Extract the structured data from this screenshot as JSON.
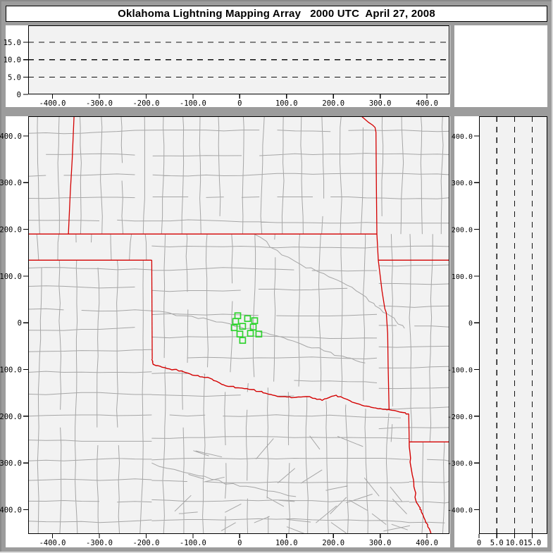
{
  "window": {
    "title": "Oklahoma Lightning Mapping Array   2000 UTC  April 27, 2008"
  },
  "colors": {
    "chrome_gray": "#9c9c9c",
    "panel_white": "#ffffff",
    "plot_bg": "#f2f2f2",
    "axis_black": "#000000",
    "county_gray": "#a6a6a6",
    "state_border_red": "#d40000",
    "station_green": "#2fd32f"
  },
  "panels": {
    "top": {
      "description": "altitude (km) vs east-west distance (km)",
      "alt_range_km": [
        0,
        19.9
      ],
      "dashed_altitudes_km": [
        5,
        10,
        15
      ],
      "y_ticks": [
        {
          "v": 15,
          "label": "15.0"
        },
        {
          "v": 10,
          "label": "10.0"
        },
        {
          "v": 5,
          "label": "5.0"
        },
        {
          "v": 0,
          "label": "0"
        }
      ]
    },
    "map": {
      "description": "plan view, distances in km from network center",
      "x_range_km": [
        -452,
        448
      ],
      "y_range_km": [
        -452,
        442
      ],
      "x_ticks": [
        {
          "v": -400,
          "label": "-400.0"
        },
        {
          "v": -300,
          "label": "-300.0"
        },
        {
          "v": -200,
          "label": "-200.0"
        },
        {
          "v": -100,
          "label": "-100.0"
        },
        {
          "v": 0,
          "label": "0"
        },
        {
          "v": 100,
          "label": "100.0"
        },
        {
          "v": 200,
          "label": "200.0"
        },
        {
          "v": 300,
          "label": "300.0"
        },
        {
          "v": 400,
          "label": "400.0"
        }
      ],
      "y_ticks": [
        {
          "v": 400,
          "label": "400.0"
        },
        {
          "v": 300,
          "label": "300.0"
        },
        {
          "v": 200,
          "label": "200.0"
        },
        {
          "v": 100,
          "label": "100.0"
        },
        {
          "v": 0,
          "label": "0"
        },
        {
          "v": -100,
          "label": "-100.0"
        },
        {
          "v": -200,
          "label": "-200.0"
        },
        {
          "v": -300,
          "label": "-300.0"
        },
        {
          "v": -400,
          "label": "-400.0"
        }
      ]
    },
    "right": {
      "description": "north-south distance (km) vs altitude (km)",
      "alt_range_km": [
        0,
        19.2
      ],
      "dashed_altitudes_km": [
        5,
        10,
        15
      ],
      "x_ticks": [
        {
          "v": 0,
          "label": "0"
        },
        {
          "v": 5,
          "label": "5.0"
        },
        {
          "v": 10,
          "label": "10.0"
        },
        {
          "v": 15,
          "label": "15.0"
        }
      ]
    }
  },
  "map_data": {
    "stations_km": [
      [
        -4.3,
        15.1
      ],
      [
        16.7,
        9.0
      ],
      [
        31.8,
        4.5
      ],
      [
        -8.8,
        3.0
      ],
      [
        6.2,
        -7.5
      ],
      [
        -11.8,
        -10.6
      ],
      [
        28.8,
        -9.0
      ],
      [
        22.8,
        -22.6
      ],
      [
        40.8,
        -24.1
      ],
      [
        0.2,
        -24.1
      ],
      [
        6.2,
        -37.7
      ]
    ],
    "state_lines": [
      {
        "name": "kansas-south-border",
        "wiggle": false,
        "pts": [
          [
            -452,
            190
          ],
          [
            293,
            190
          ]
        ]
      },
      {
        "name": "panhandle-south-border",
        "wiggle": false,
        "pts": [
          [
            -452,
            134
          ],
          [
            -188,
            134
          ]
        ]
      },
      {
        "name": "texas-oklahoma-meridian",
        "wiggle": false,
        "pts": [
          [
            -188,
            134
          ],
          [
            -187,
            -78
          ]
        ]
      },
      {
        "name": "kansas-colorado-border",
        "wiggle": false,
        "pts": [
          [
            -354,
            442
          ],
          [
            -358,
            350
          ],
          [
            -362,
            280
          ],
          [
            -366,
            190
          ]
        ]
      },
      {
        "name": "east-state-border",
        "wiggle": false,
        "pts": [
          [
            260,
            442
          ],
          [
            267,
            436
          ],
          [
            275,
            429
          ],
          [
            284,
            423
          ],
          [
            289,
            418
          ],
          [
            291,
            408
          ],
          [
            292,
            291
          ],
          [
            293,
            190
          ],
          [
            296,
            134
          ],
          [
            304,
            68
          ],
          [
            310,
            30
          ],
          [
            313,
            22
          ],
          [
            316,
            -23
          ],
          [
            317,
            -95
          ],
          [
            319,
            -186
          ]
        ]
      },
      {
        "name": "arkansas-missouri-border",
        "wiggle": false,
        "pts": [
          [
            296,
            134
          ],
          [
            448,
            134
          ]
        ]
      },
      {
        "name": "red-river",
        "wiggle": true,
        "pts": [
          [
            -188,
            -78
          ],
          [
            -185,
            -89
          ],
          [
            -170,
            -93
          ],
          [
            -155,
            -98
          ],
          [
            -140,
            -100
          ],
          [
            -125,
            -103
          ],
          [
            -110,
            -108
          ],
          [
            -95,
            -113
          ],
          [
            -80,
            -116
          ],
          [
            -65,
            -118
          ],
          [
            -50,
            -125
          ],
          [
            -34,
            -133
          ],
          [
            -20,
            -136
          ],
          [
            -4,
            -139
          ],
          [
            10,
            -141
          ],
          [
            26,
            -143
          ],
          [
            41,
            -147
          ],
          [
            56,
            -151
          ],
          [
            71,
            -155
          ],
          [
            86,
            -158
          ],
          [
            101,
            -159
          ],
          [
            116,
            -160
          ],
          [
            131,
            -159
          ],
          [
            146,
            -158
          ],
          [
            161,
            -162
          ],
          [
            176,
            -166
          ],
          [
            191,
            -160
          ],
          [
            206,
            -155
          ],
          [
            221,
            -161
          ],
          [
            236,
            -167
          ],
          [
            251,
            -173
          ],
          [
            266,
            -178
          ],
          [
            281,
            -181
          ],
          [
            296,
            -184
          ],
          [
            311,
            -185
          ],
          [
            319,
            -186
          ],
          [
            335,
            -189
          ],
          [
            348,
            -192
          ],
          [
            361,
            -195
          ]
        ]
      },
      {
        "name": "texas-arkansas-border",
        "wiggle": false,
        "pts": [
          [
            361,
            -195
          ],
          [
            362,
            -255
          ]
        ]
      },
      {
        "name": "arkansas-louisiana-border",
        "wiggle": false,
        "pts": [
          [
            362,
            -255
          ],
          [
            448,
            -255
          ]
        ]
      },
      {
        "name": "texas-louisiana-border",
        "wiggle": true,
        "pts": [
          [
            362,
            -255
          ],
          [
            365,
            -290
          ],
          [
            366,
            -310
          ],
          [
            371,
            -335
          ],
          [
            374,
            -358
          ],
          [
            376,
            -380
          ],
          [
            383,
            -393
          ],
          [
            388,
            -401
          ],
          [
            391,
            -410
          ],
          [
            396,
            -422
          ],
          [
            402,
            -437
          ],
          [
            409,
            -453
          ]
        ]
      }
    ],
    "rivers_km": [
      {
        "name": "canadian-river",
        "pts": [
          [
            -188,
            25
          ],
          [
            -120,
            15
          ],
          [
            -60,
            5
          ],
          [
            -10,
            -8
          ],
          [
            30,
            -15
          ],
          [
            80,
            -28
          ],
          [
            130,
            -45
          ],
          [
            180,
            -60
          ],
          [
            230,
            -75
          ],
          [
            268,
            -86
          ]
        ]
      },
      {
        "name": "arkansas-river",
        "pts": [
          [
            30,
            190
          ],
          [
            80,
            155
          ],
          [
            130,
            125
          ],
          [
            180,
            105
          ],
          [
            230,
            80
          ],
          [
            270,
            55
          ],
          [
            300,
            30
          ],
          [
            330,
            10
          ],
          [
            352,
            -12
          ]
        ]
      },
      {
        "name": "brazos-river",
        "pts": [
          [
            -188,
            -300
          ],
          [
            -120,
            -320
          ],
          [
            -60,
            -335
          ],
          [
            0,
            -350
          ],
          [
            60,
            -360
          ],
          [
            120,
            -372
          ]
        ]
      }
    ]
  }
}
